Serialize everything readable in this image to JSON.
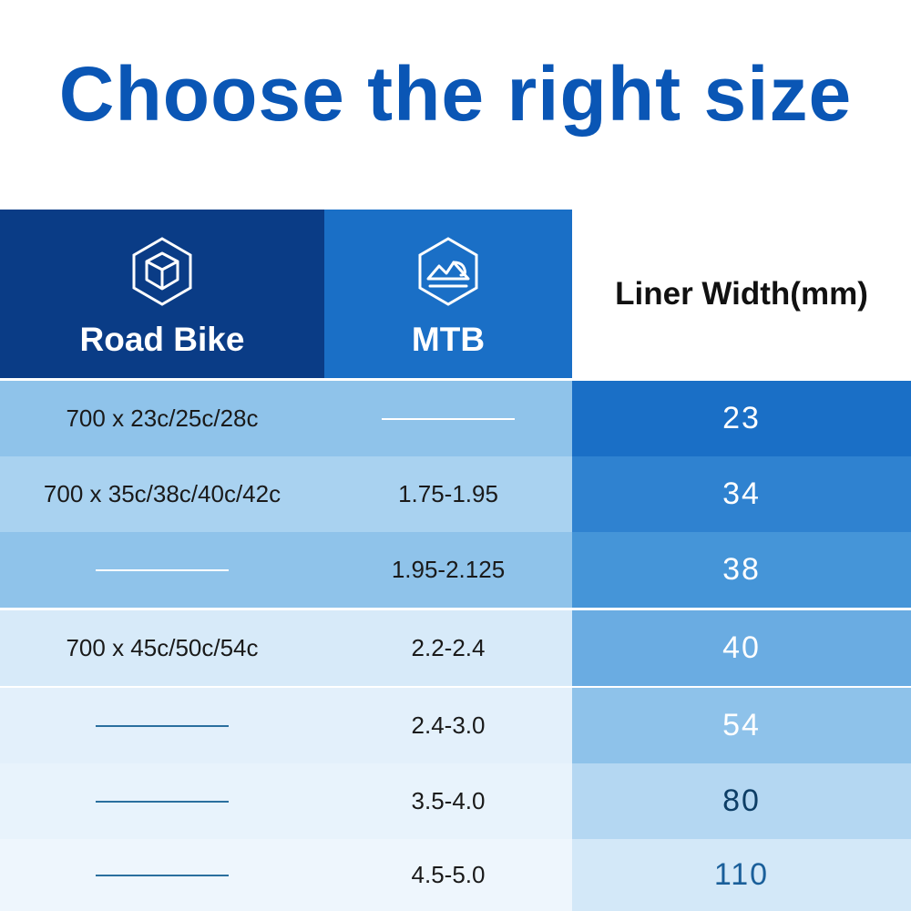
{
  "title": "Choose the right size",
  "headers": {
    "road": {
      "label": "Road Bike",
      "icon": "box-hexagon-icon"
    },
    "mtb": {
      "label": "MTB",
      "icon": "mountain-hexagon-icon"
    },
    "width": {
      "label": "Liner Width(mm)"
    }
  },
  "rows": [
    {
      "road": "700 x 23c/25c/28c",
      "mtb": "",
      "width": "23"
    },
    {
      "road": "700 x 35c/38c/40c/42c",
      "mtb": "1.75-1.95",
      "width": "34"
    },
    {
      "road": "",
      "mtb": "1.95-2.125",
      "width": "38"
    },
    {
      "road": "700 x 45c/50c/54c",
      "mtb": "2.2-2.4",
      "width": "40"
    },
    {
      "road": "",
      "mtb": "2.4-3.0",
      "width": "54"
    },
    {
      "road": "",
      "mtb": "3.5-4.0",
      "width": "80"
    },
    {
      "road": "",
      "mtb": "4.5-5.0",
      "width": "110"
    }
  ],
  "colors": {
    "title": "#0a56b5",
    "road_header": "#0a3c86",
    "mtb_header": "#1a6fc6"
  }
}
